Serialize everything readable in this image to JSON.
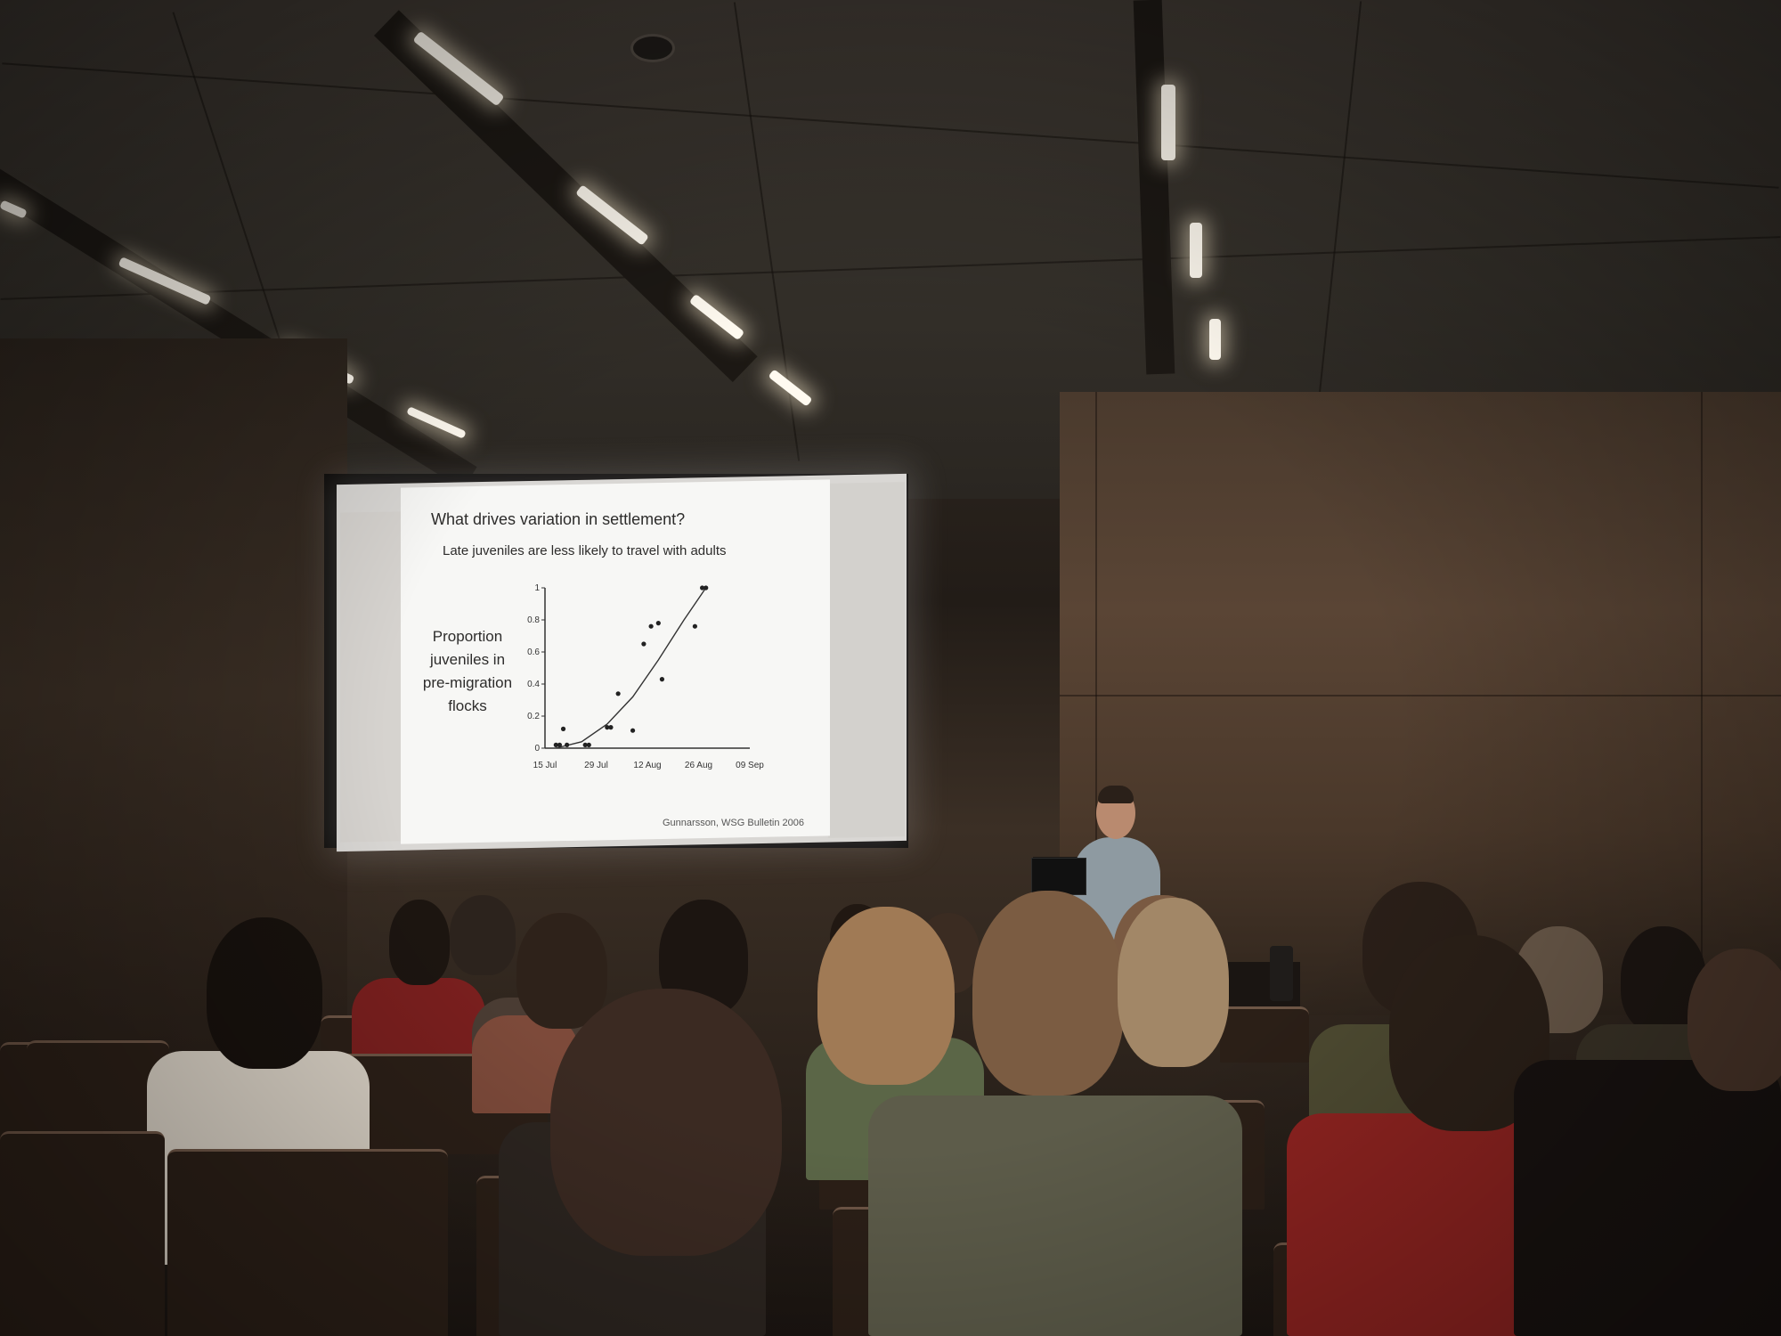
{
  "slide": {
    "title": "What drives variation in settlement?",
    "subtitle": "Late juveniles are less likely to travel with adults",
    "ylabel": "Proportion juveniles in pre-migration flocks",
    "source": "Gunnarsson, WSG Bulletin 2006"
  },
  "chart_data": {
    "type": "scatter",
    "title": "",
    "xlabel": "",
    "ylabel": "Proportion juveniles in pre-migration flocks",
    "x_ticks": [
      "15 Jul",
      "29 Jul",
      "12 Aug",
      "26 Aug",
      "09 Sep"
    ],
    "y_ticks": [
      "0",
      "0.2",
      "0.4",
      "0.6",
      "0.8",
      "1"
    ],
    "ylim": [
      0,
      1
    ],
    "xlim_days": [
      0,
      56
    ],
    "points": [
      {
        "x": 3,
        "y": 0.02
      },
      {
        "x": 4,
        "y": 0.02
      },
      {
        "x": 5,
        "y": 0.12
      },
      {
        "x": 6,
        "y": 0.02
      },
      {
        "x": 11,
        "y": 0.02
      },
      {
        "x": 12,
        "y": 0.02
      },
      {
        "x": 17,
        "y": 0.13
      },
      {
        "x": 18,
        "y": 0.13
      },
      {
        "x": 20,
        "y": 0.34
      },
      {
        "x": 24,
        "y": 0.11
      },
      {
        "x": 27,
        "y": 0.65
      },
      {
        "x": 29,
        "y": 0.76
      },
      {
        "x": 31,
        "y": 0.78
      },
      {
        "x": 32,
        "y": 0.43
      },
      {
        "x": 41,
        "y": 0.76
      },
      {
        "x": 43,
        "y": 1.0
      },
      {
        "x": 44,
        "y": 1.0
      }
    ],
    "fit_curve": [
      {
        "x": 3,
        "y": 0.0
      },
      {
        "x": 10,
        "y": 0.04
      },
      {
        "x": 17,
        "y": 0.15
      },
      {
        "x": 24,
        "y": 0.32
      },
      {
        "x": 31,
        "y": 0.55
      },
      {
        "x": 38,
        "y": 0.8
      },
      {
        "x": 44,
        "y": 1.0
      }
    ]
  }
}
